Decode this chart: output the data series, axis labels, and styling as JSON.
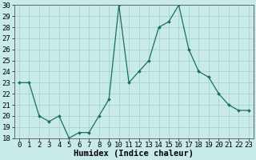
{
  "x": [
    0,
    1,
    2,
    3,
    4,
    5,
    6,
    7,
    8,
    9,
    10,
    11,
    12,
    13,
    14,
    15,
    16,
    17,
    18,
    19,
    20,
    21,
    22,
    23
  ],
  "y": [
    23,
    23,
    20,
    19.5,
    20,
    18,
    18.5,
    18.5,
    20,
    21.5,
    30,
    23,
    24,
    25,
    28,
    28.5,
    30,
    26,
    24,
    23.5,
    22,
    21,
    20.5,
    20.5
  ],
  "line_color": "#1a7060",
  "marker_color": "#1a7060",
  "bg_color": "#c8eae8",
  "grid_color": "#a0d0ce",
  "xlabel": "Humidex (Indice chaleur)",
  "xlim": [
    -0.5,
    23.5
  ],
  "ylim": [
    18,
    30
  ],
  "yticks": [
    18,
    19,
    20,
    21,
    22,
    23,
    24,
    25,
    26,
    27,
    28,
    29,
    30
  ],
  "xtick_labels": [
    "0",
    "1",
    "2",
    "3",
    "4",
    "5",
    "6",
    "7",
    "8",
    "9",
    "1011",
    "1213",
    "1415",
    "1617",
    "1819",
    "2021",
    "2223"
  ],
  "font_size_xlabel": 7.5,
  "font_size_tick": 6.5
}
